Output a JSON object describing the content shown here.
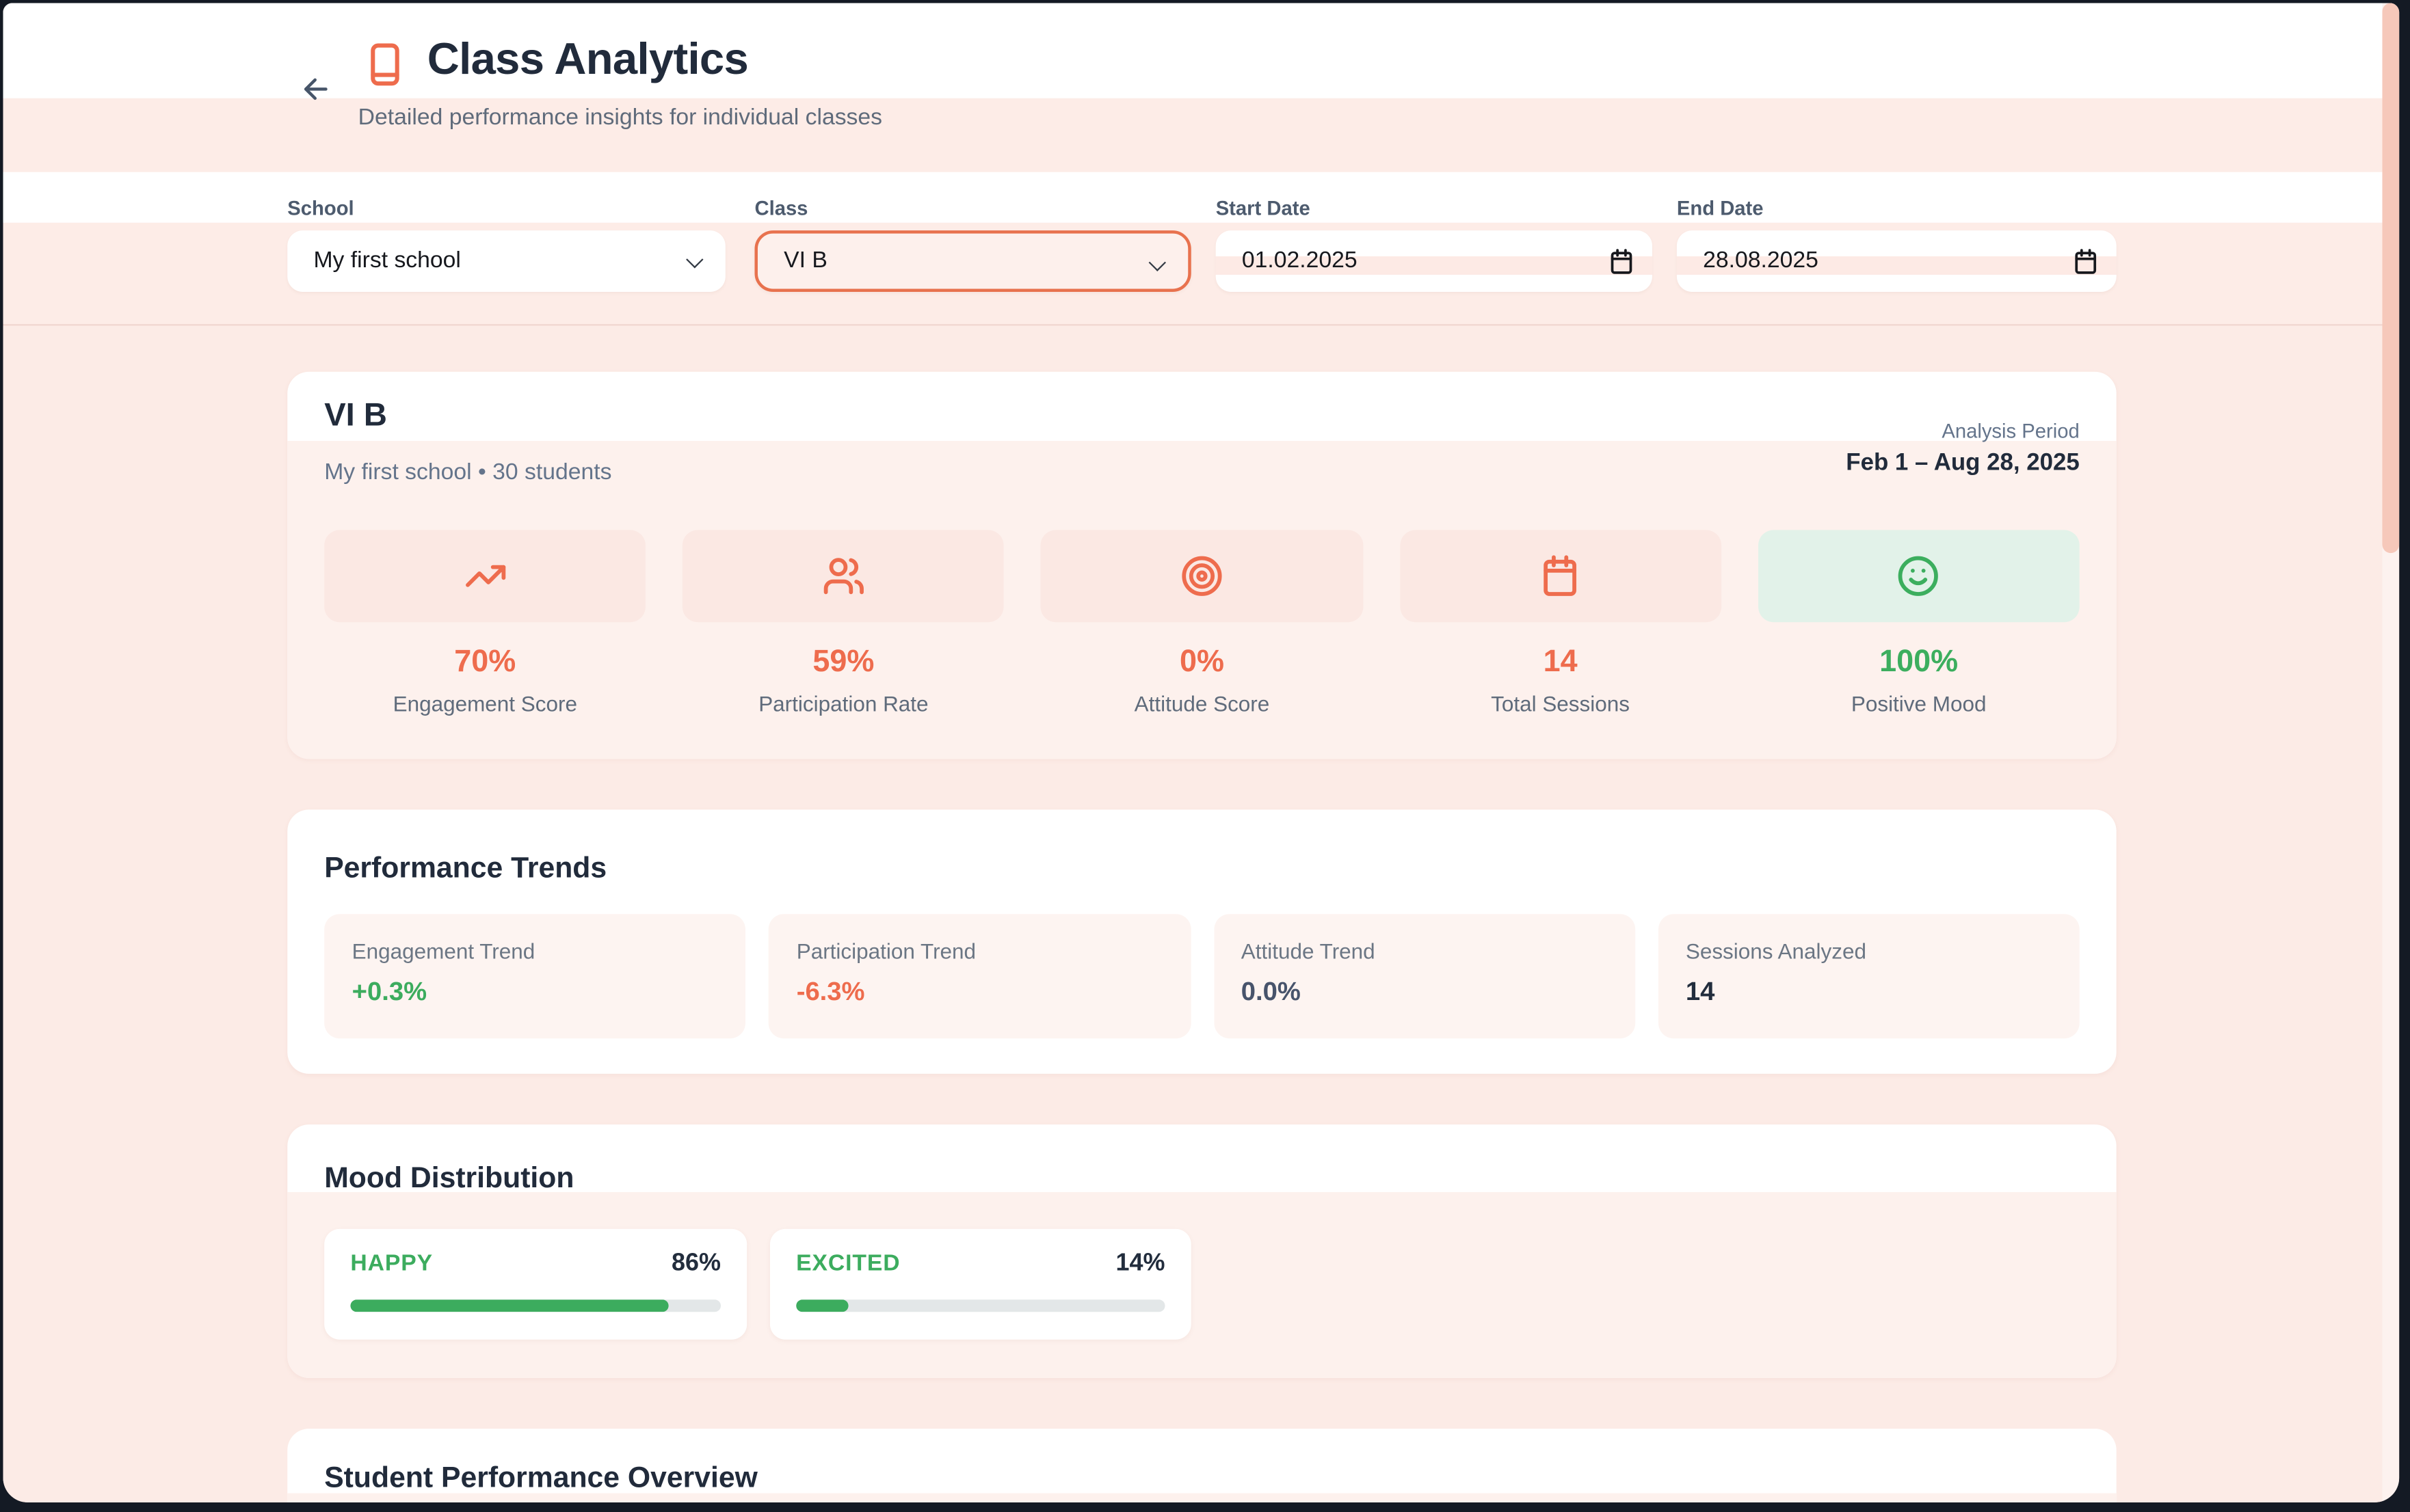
{
  "colors": {
    "accent_coral": "#ee6c4d",
    "accent_green": "#3cac5e",
    "navy_text": "#212b3b",
    "page_pink": "#fcebe6"
  },
  "header": {
    "back_icon": "arrow-left-icon",
    "title_icon": "book-icon",
    "title": "Class Analytics",
    "subtitle": "Detailed performance insights for individual classes"
  },
  "filters": {
    "school": {
      "label": "School",
      "value": "My first school"
    },
    "class": {
      "label": "Class",
      "value": "VI B"
    },
    "start_date": {
      "label": "Start Date",
      "value": "01.02.2025"
    },
    "end_date": {
      "label": "End Date",
      "value": "28.08.2025"
    }
  },
  "summary": {
    "class_name": "VI B",
    "meta": "My first school • 30 students",
    "analysis_period_label": "Analysis Period",
    "analysis_period_value": "Feb 1 – Aug 28, 2025",
    "stats": [
      {
        "icon": "trending-up-icon",
        "value": "70%",
        "label": "Engagement Score",
        "theme": "coral"
      },
      {
        "icon": "users-icon",
        "value": "59%",
        "label": "Participation Rate",
        "theme": "coral"
      },
      {
        "icon": "target-icon",
        "value": "0%",
        "label": "Attitude Score",
        "theme": "coral"
      },
      {
        "icon": "calendar-icon",
        "value": "14",
        "label": "Total Sessions",
        "theme": "coral"
      },
      {
        "icon": "smile-icon",
        "value": "100%",
        "label": "Positive Mood",
        "theme": "green"
      }
    ]
  },
  "trends": {
    "title": "Performance Trends",
    "items": [
      {
        "label": "Engagement Trend",
        "value": "+0.3%",
        "color": "green"
      },
      {
        "label": "Participation Trend",
        "value": "-6.3%",
        "color": "coral"
      },
      {
        "label": "Attitude Trend",
        "value": "0.0%",
        "color": "gray"
      },
      {
        "label": "Sessions Analyzed",
        "value": "14",
        "color": "navy"
      }
    ]
  },
  "mood": {
    "title": "Mood Distribution",
    "items": [
      {
        "label": "HAPPY",
        "value": "86%",
        "percent": 86
      },
      {
        "label": "EXCITED",
        "value": "14%",
        "percent": 14
      }
    ]
  },
  "students": {
    "title": "Student Performance Overview"
  }
}
